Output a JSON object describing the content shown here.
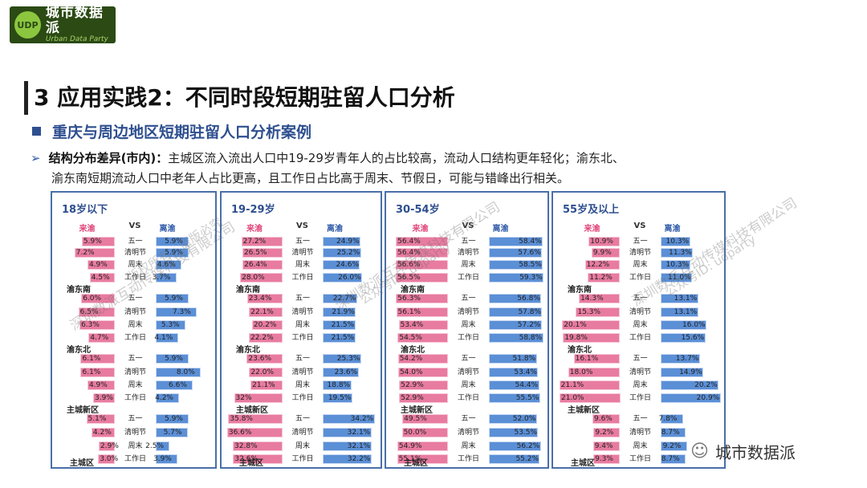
{
  "logo": {
    "cn": "城市数据派",
    "en": "Urban Data Party",
    "badge": "UDP"
  },
  "title": "3 应用实践2：不同时段短期驻留人口分析",
  "subtitle": "重庆与周边地区短期驻留人口分析案例",
  "para": {
    "arrow": "➢",
    "head": "结构分布差异(市内)：",
    "line1": "主城区流入流出人口中19-29岁青年人的占比较高，流动人口结构更年轻化；渝东北、",
    "line2": "渝东南短期流动人口中老年人占比更高，且工作日占比高于周末、节假日，可能与错峰出行相关。"
  },
  "headers": {
    "left": "来渝",
    "mid": "VS",
    "right": "离渝"
  },
  "chart_data": {
    "type": "bar",
    "categories": [
      "五一",
      "清明节",
      "周末",
      "工作日"
    ],
    "series_names": [
      "来渝",
      "离渝"
    ],
    "panels": [
      {
        "title": "18岁以下",
        "scale": 10,
        "groups": [
          {
            "district": "",
            "left": [
              "5.9%",
              "7.2%",
              "4.9%",
              "4.5%"
            ],
            "right": [
              "5.9%",
              "5.9%",
              "4.6%",
              "3.7%"
            ],
            "lv": [
              5.9,
              7.2,
              4.9,
              4.5
            ],
            "rv": [
              5.9,
              5.9,
              4.6,
              3.7
            ]
          },
          {
            "district": "渝东南",
            "left": [
              "6.0%",
              "6.5%",
              "6.3%",
              "4.7%"
            ],
            "right": [
              "5.9%",
              "7.3%",
              "5.3%",
              "4.1%"
            ],
            "lv": [
              6.0,
              6.5,
              6.3,
              4.7
            ],
            "rv": [
              5.9,
              7.3,
              5.3,
              4.1
            ]
          },
          {
            "district": "渝东北",
            "left": [
              "6.1%",
              "6.1%",
              "4.9%",
              "3.9%"
            ],
            "right": [
              "5.9%",
              "8.0%",
              "6.6%",
              "4.2%"
            ],
            "lv": [
              6.1,
              6.1,
              4.9,
              3.9
            ],
            "rv": [
              5.9,
              8.0,
              6.6,
              4.2
            ]
          },
          {
            "district": "主城新区",
            "left": [
              "5.1%",
              "4.2%",
              "2.9%",
              "3.0%"
            ],
            "right": [
              "5.9%",
              "5.7%",
              "2.5%",
              "3.9%"
            ],
            "lv": [
              5.1,
              4.2,
              2.9,
              3.0
            ],
            "rv": [
              5.9,
              5.7,
              2.5,
              3.9
            ]
          }
        ],
        "footer": "主城区"
      },
      {
        "title": "19-29岁",
        "scale": 36,
        "groups": [
          {
            "district": "",
            "left": [
              "27.2%",
              "26.5%",
              "26.4%",
              "28.0%"
            ],
            "right": [
              "24.9%",
              "25.2%",
              "24.6%",
              "26.0%"
            ],
            "lv": [
              27.2,
              26.5,
              26.4,
              28.0
            ],
            "rv": [
              24.9,
              25.2,
              24.6,
              26.0
            ]
          },
          {
            "district": "渝东南",
            "left": [
              "23.4%",
              "22.1%",
              "20.2%",
              "22.2%"
            ],
            "right": [
              "22.7%",
              "21.9%",
              "21.5%",
              "21.5%"
            ],
            "lv": [
              23.4,
              22.1,
              20.2,
              22.2
            ],
            "rv": [
              22.7,
              21.9,
              21.5,
              21.5
            ]
          },
          {
            "district": "渝东北",
            "left": [
              "23.6%",
              "22.0%",
              "21.1%",
              "32%"
            ],
            "right": [
              "25.3%",
              "23.6%",
              "18.8%",
              "19.5%"
            ],
            "lv": [
              23.6,
              22.0,
              21.1,
              32.0
            ],
            "rv": [
              25.3,
              23.6,
              18.8,
              19.5
            ]
          },
          {
            "district": "主城新区",
            "left": [
              "35.8%",
              "36.6%",
              "32.8%",
              "32.6%"
            ],
            "right": [
              "34.2%",
              "32.1%",
              "32.1%",
              "32.2%"
            ],
            "lv": [
              35.8,
              36.6,
              32.8,
              32.6
            ],
            "rv": [
              34.2,
              32.1,
              32.1,
              32.2
            ]
          }
        ],
        "footer": "主城区"
      },
      {
        "title": "30-54岁",
        "scale": 60,
        "groups": [
          {
            "district": "",
            "left": [
              "56.4%",
              "56.4%",
              "56.6%",
              "56.5%"
            ],
            "right": [
              "58.4%",
              "57.6%",
              "58.5%",
              "59.3%"
            ],
            "lv": [
              56.4,
              56.4,
              56.6,
              56.5
            ],
            "rv": [
              58.4,
              57.6,
              58.5,
              59.3
            ]
          },
          {
            "district": "渝东南",
            "left": [
              "56.3%",
              "56.1%",
              "53.4%",
              "54.5%"
            ],
            "right": [
              "56.8%",
              "57.8%",
              "57.2%",
              "58.8%"
            ],
            "lv": [
              56.3,
              56.1,
              53.4,
              54.5
            ],
            "rv": [
              56.8,
              57.8,
              57.2,
              58.8
            ]
          },
          {
            "district": "渝东北",
            "left": [
              "54.2%",
              "54.0%",
              "52.9%",
              "52.9%"
            ],
            "right": [
              "51.8%",
              "53.4%",
              "54.4%",
              "55.5%"
            ],
            "lv": [
              54.2,
              54.0,
              52.9,
              52.9
            ],
            "rv": [
              51.8,
              53.4,
              54.4,
              55.5
            ]
          },
          {
            "district": "主城新区",
            "left": [
              "49.5%",
              "50.0%",
              "54.9%",
              "55.1%"
            ],
            "right": [
              "52.0%",
              "53.5%",
              "56.2%",
              "55.2%"
            ],
            "lv": [
              49.5,
              50.0,
              54.9,
              55.1
            ],
            "rv": [
              52.0,
              53.5,
              56.2,
              55.2
            ]
          }
        ],
        "footer": "主城区"
      },
      {
        "title": "55岁及以上",
        "scale": 21,
        "groups": [
          {
            "district": "",
            "left": [
              "10.9%",
              "9.9%",
              "12.2%",
              "11.2%"
            ],
            "right": [
              "10.3%",
              "11.3%",
              "10.3%",
              "11.0%"
            ],
            "lv": [
              10.9,
              9.9,
              12.2,
              11.2
            ],
            "rv": [
              10.3,
              11.3,
              10.3,
              11.0
            ]
          },
          {
            "district": "渝东南",
            "left": [
              "14.3%",
              "15.3%",
              "20.1%",
              "19.8%"
            ],
            "right": [
              "13.1%",
              "13.1%",
              "16.0%",
              "15.6%"
            ],
            "lv": [
              14.3,
              15.3,
              20.1,
              19.8
            ],
            "rv": [
              13.1,
              13.1,
              16.0,
              15.6
            ]
          },
          {
            "district": "渝东北",
            "left": [
              "16.1%",
              "18.0%",
              "21.1%",
              "21.0%"
            ],
            "right": [
              "13.7%",
              "14.9%",
              "20.2%",
              "20.9%"
            ],
            "lv": [
              16.1,
              18.0,
              21.1,
              21.0
            ],
            "rv": [
              13.7,
              14.9,
              20.2,
              20.9
            ]
          },
          {
            "district": "主城新区",
            "left": [
              "9.6%",
              "9.2%",
              "9.4%",
              "9.3%"
            ],
            "right": [
              "7.8%",
              "8.7%",
              "9.2%",
              "8.7%"
            ],
            "lv": [
              9.6,
              9.2,
              9.4,
              9.3
            ],
            "rv": [
              7.8,
              8.7,
              9.2,
              8.7
            ]
          }
        ],
        "footer": "主城区"
      }
    ]
  },
  "watermarks": [
    "深圳数派互动传媒科技有限公司",
    "版权所有，盗版必究",
    "公众号ID: udparty"
  ],
  "brand": "城市数据派",
  "colors": {
    "pink": "#e87ba0",
    "blue": "#5b8fd6",
    "title_blue": "#2e4f8f"
  }
}
